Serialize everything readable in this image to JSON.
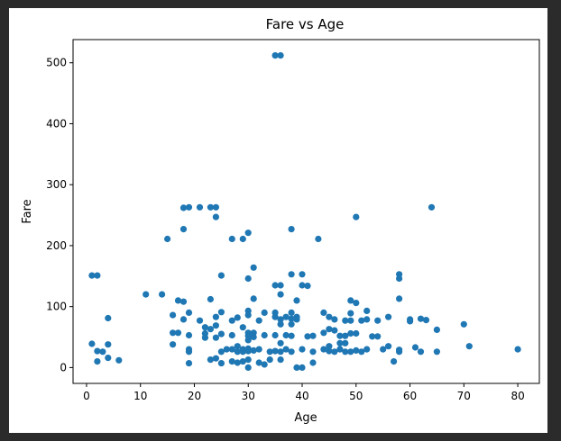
{
  "chart_data": {
    "type": "scatter",
    "title": "Fare vs Age",
    "xlabel": "Age",
    "ylabel": "Fare",
    "xlim": [
      -2.5,
      84
    ],
    "ylim": [
      -26,
      538
    ],
    "xticks": [
      0,
      10,
      20,
      30,
      40,
      50,
      60,
      70,
      80
    ],
    "yticks": [
      0,
      100,
      200,
      300,
      400,
      500
    ],
    "grid": false,
    "marker_color": "#1f77b4",
    "points": [
      [
        1,
        151
      ],
      [
        2,
        151
      ],
      [
        1,
        39
      ],
      [
        2,
        27
      ],
      [
        2,
        10
      ],
      [
        3,
        26
      ],
      [
        4,
        81
      ],
      [
        4,
        38
      ],
      [
        4,
        16
      ],
      [
        6,
        12
      ],
      [
        11,
        120
      ],
      [
        14,
        120
      ],
      [
        15,
        211
      ],
      [
        16,
        86
      ],
      [
        16,
        57
      ],
      [
        16,
        38
      ],
      [
        17,
        110
      ],
      [
        17,
        57
      ],
      [
        18,
        108
      ],
      [
        18,
        79
      ],
      [
        18,
        262
      ],
      [
        18,
        227
      ],
      [
        19,
        263
      ],
      [
        19,
        90
      ],
      [
        19,
        53
      ],
      [
        19,
        30
      ],
      [
        19,
        26
      ],
      [
        19,
        7
      ],
      [
        21,
        263
      ],
      [
        21,
        77
      ],
      [
        22,
        66
      ],
      [
        22,
        56
      ],
      [
        22,
        49
      ],
      [
        23,
        263
      ],
      [
        23,
        112
      ],
      [
        23,
        63
      ],
      [
        23,
        13
      ],
      [
        24,
        263
      ],
      [
        24,
        247
      ],
      [
        24,
        83
      ],
      [
        24,
        69
      ],
      [
        24,
        49
      ],
      [
        24,
        15
      ],
      [
        25,
        151
      ],
      [
        25,
        91
      ],
      [
        25,
        55
      ],
      [
        25,
        26
      ],
      [
        25,
        7
      ],
      [
        26,
        30
      ],
      [
        27,
        211
      ],
      [
        27,
        77
      ],
      [
        27,
        53
      ],
      [
        27,
        30
      ],
      [
        27,
        10
      ],
      [
        28,
        82
      ],
      [
        28,
        35
      ],
      [
        28,
        26
      ],
      [
        28,
        8
      ],
      [
        29,
        211
      ],
      [
        29,
        66
      ],
      [
        29,
        30
      ],
      [
        29,
        26
      ],
      [
        29,
        10
      ],
      [
        30,
        221
      ],
      [
        30,
        146
      ],
      [
        30,
        93
      ],
      [
        30,
        86
      ],
      [
        30,
        57
      ],
      [
        30,
        52
      ],
      [
        30,
        45
      ],
      [
        30,
        31
      ],
      [
        30,
        27
      ],
      [
        30,
        13
      ],
      [
        30,
        0
      ],
      [
        31,
        164
      ],
      [
        31,
        113
      ],
      [
        31,
        57
      ],
      [
        31,
        50
      ],
      [
        31,
        28
      ],
      [
        32,
        77
      ],
      [
        32,
        30
      ],
      [
        32,
        8
      ],
      [
        33,
        90
      ],
      [
        33,
        53
      ],
      [
        33,
        5
      ],
      [
        34,
        26
      ],
      [
        34,
        13
      ],
      [
        35,
        512
      ],
      [
        35,
        135
      ],
      [
        35,
        90
      ],
      [
        35,
        83
      ],
      [
        35,
        53
      ],
      [
        35,
        27
      ],
      [
        36,
        512
      ],
      [
        36,
        135
      ],
      [
        36,
        120
      ],
      [
        36,
        79
      ],
      [
        36,
        71
      ],
      [
        36,
        40
      ],
      [
        36,
        26
      ],
      [
        36,
        13
      ],
      [
        37,
        83
      ],
      [
        37,
        53
      ],
      [
        37,
        30
      ],
      [
        38,
        227
      ],
      [
        38,
        153
      ],
      [
        38,
        90
      ],
      [
        38,
        80
      ],
      [
        38,
        71
      ],
      [
        38,
        52
      ],
      [
        38,
        26
      ],
      [
        39,
        110
      ],
      [
        39,
        83
      ],
      [
        39,
        79
      ],
      [
        39,
        0
      ],
      [
        40,
        153
      ],
      [
        40,
        135
      ],
      [
        40,
        30
      ],
      [
        40,
        0
      ],
      [
        41,
        134
      ],
      [
        41,
        51
      ],
      [
        42,
        52
      ],
      [
        42,
        26
      ],
      [
        42,
        8
      ],
      [
        43,
        211
      ],
      [
        44,
        90
      ],
      [
        44,
        57
      ],
      [
        44,
        30
      ],
      [
        45,
        83
      ],
      [
        45,
        63
      ],
      [
        45,
        35
      ],
      [
        45,
        27
      ],
      [
        46,
        79
      ],
      [
        46,
        61
      ],
      [
        46,
        26
      ],
      [
        47,
        52
      ],
      [
        47,
        40
      ],
      [
        47,
        30
      ],
      [
        48,
        77
      ],
      [
        48,
        52
      ],
      [
        48,
        40
      ],
      [
        48,
        26
      ],
      [
        49,
        110
      ],
      [
        49,
        89
      ],
      [
        49,
        77
      ],
      [
        49,
        56
      ],
      [
        49,
        26
      ],
      [
        50,
        247
      ],
      [
        50,
        106
      ],
      [
        50,
        56
      ],
      [
        50,
        28
      ],
      [
        51,
        77
      ],
      [
        51,
        26
      ],
      [
        52,
        93
      ],
      [
        52,
        79
      ],
      [
        52,
        30
      ],
      [
        53,
        51
      ],
      [
        54,
        77
      ],
      [
        54,
        51
      ],
      [
        55,
        30
      ],
      [
        56,
        83
      ],
      [
        56,
        35
      ],
      [
        57,
        10
      ],
      [
        58,
        153
      ],
      [
        58,
        146
      ],
      [
        58,
        113
      ],
      [
        58,
        29
      ],
      [
        58,
        26
      ],
      [
        60,
        79
      ],
      [
        60,
        76
      ],
      [
        61,
        33
      ],
      [
        62,
        80
      ],
      [
        62,
        26
      ],
      [
        63,
        78
      ],
      [
        64,
        263
      ],
      [
        65,
        62
      ],
      [
        65,
        26
      ],
      [
        70,
        71
      ],
      [
        71,
        35
      ],
      [
        80,
        30
      ]
    ]
  }
}
